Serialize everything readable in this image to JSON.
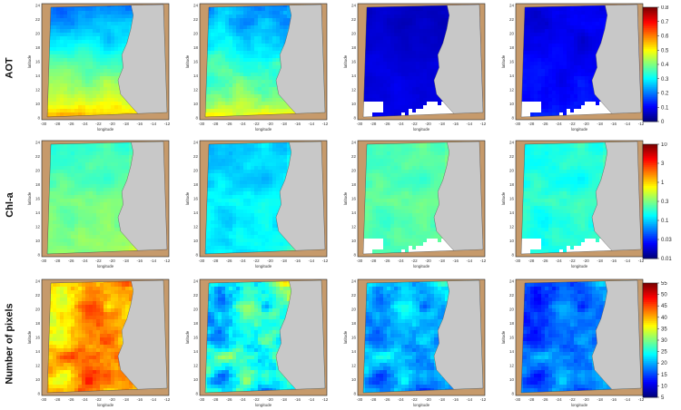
{
  "rows": [
    {
      "label": "AOT",
      "colorbar_ticks": [
        "0.8",
        "0.7",
        "0.6",
        "0.5",
        "0.4",
        "0.3",
        "0.2",
        "0.1",
        "0"
      ],
      "panels": [
        {
          "scheme": "aot_high"
        },
        {
          "scheme": "aot_mid"
        },
        {
          "scheme": "aot_low"
        },
        {
          "scheme": "aot_low2"
        }
      ]
    },
    {
      "label": "Chl-a",
      "colorbar_ticks": [
        "10",
        "3",
        "1",
        "0.3",
        "0.1",
        "0.03",
        "0.01"
      ],
      "panels": [
        {
          "scheme": "chl_1"
        },
        {
          "scheme": "chl_2"
        },
        {
          "scheme": "chl_3"
        },
        {
          "scheme": "chl_4"
        }
      ]
    },
    {
      "label": "Number of pixels",
      "colorbar_ticks": [
        "55",
        "50",
        "45",
        "40",
        "35",
        "30",
        "25",
        "20",
        "15",
        "10",
        "5"
      ],
      "panels": [
        {
          "scheme": "npix_1"
        },
        {
          "scheme": "npix_2"
        },
        {
          "scheme": "npix_3"
        },
        {
          "scheme": "npix_4"
        }
      ]
    }
  ],
  "axes": {
    "xlabel": "longitude",
    "ylabel": "latitude",
    "x_ticks": [
      "-30",
      "-28",
      "-26",
      "-24",
      "-22",
      "-20",
      "-18",
      "-16",
      "-14",
      "-12"
    ],
    "y_ticks": [
      "24",
      "22",
      "20",
      "18",
      "16",
      "14",
      "12",
      "10",
      "8"
    ]
  },
  "colors": {
    "land": "#c8c8c8",
    "border": "#c69a6b",
    "jet_low": "#0000aa",
    "jet_high": "#aa0000"
  }
}
